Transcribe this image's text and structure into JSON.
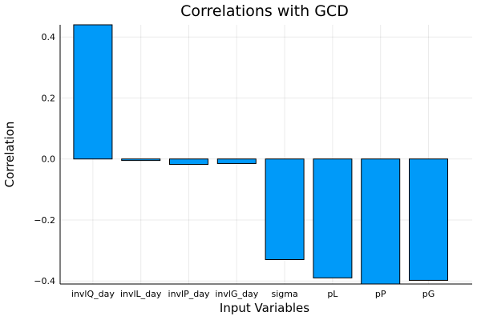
{
  "chart_data": {
    "type": "bar",
    "title": "Correlations with GCD",
    "xlabel": "Input Variables",
    "ylabel": "Correlation",
    "categories": [
      "invlQ_day",
      "invlL_day",
      "invlP_day",
      "invlG_day",
      "sigma",
      "pL",
      "pP",
      "pG"
    ],
    "values": [
      0.44,
      -0.005,
      -0.018,
      -0.015,
      -0.33,
      -0.39,
      -0.41,
      -0.398
    ],
    "ylim": [
      -0.41,
      0.44
    ],
    "yticks": [
      0.4,
      0.2,
      0.0,
      -0.2,
      -0.4
    ],
    "ytick_labels": [
      "0.4",
      "0.2",
      "0.0",
      "−0.2",
      "−0.4"
    ],
    "grid": true,
    "colors": {
      "bar_fill": "#009af9",
      "bar_stroke": "#000000"
    }
  }
}
